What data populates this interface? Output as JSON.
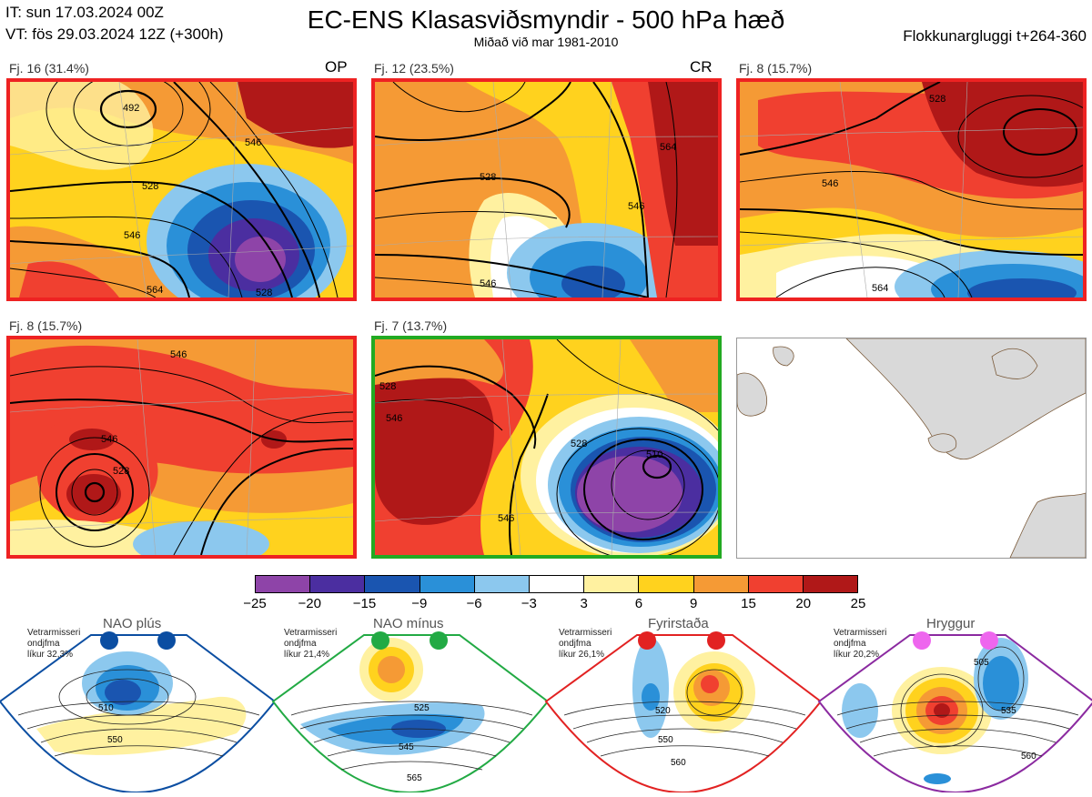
{
  "header": {
    "it_line": "IT: sun 17.03.2024 00Z",
    "vt_line": "VT: fös 29.03.2024 12Z  (+300h)",
    "title": "EC-ENS Klasasviðsmyndir - 500 hPa hæð",
    "subtitle": "Miðað við mar 1981-2010",
    "window": "Flokkunargluggi t+264-360"
  },
  "panels": [
    {
      "label": "Fj. 16 (31.4%)",
      "tag": "OP",
      "border": "#e22222",
      "contours": [
        "492",
        "528",
        "546",
        "564",
        "528",
        "546"
      ]
    },
    {
      "label": "Fj. 12 (23.5%)",
      "tag": "CR",
      "border": "#e22222",
      "contours": [
        "528",
        "546",
        "564",
        "546"
      ]
    },
    {
      "label": "Fj. 8 (15.7%)",
      "tag": "",
      "border": "#e22222",
      "contours": [
        "528",
        "546",
        "564"
      ]
    },
    {
      "label": "Fj. 8 (15.7%)",
      "tag": "",
      "border": "#e22222",
      "contours": [
        "546",
        "528",
        "546"
      ]
    },
    {
      "label": "Fj. 7 (13.7%)",
      "tag": "",
      "border": "#22aa22",
      "contours": [
        "528",
        "546",
        "510",
        "528",
        "546"
      ]
    }
  ],
  "colorbar": {
    "ticks": [
      "−25",
      "−20",
      "−15",
      "−9",
      "−6",
      "−3",
      "3",
      "6",
      "9",
      "15",
      "20",
      "25"
    ],
    "colors": [
      "#8e44a8",
      "#4b2ea0",
      "#1a55b0",
      "#2a90d8",
      "#8cc8ee",
      "#ffffff",
      "#fff1a0",
      "#ffd21e",
      "#f59a35",
      "#f04030",
      "#b01818"
    ]
  },
  "regimes": [
    {
      "name": "NAO plús",
      "desc1": "Vetrarmisseri",
      "desc2": "ondjfma",
      "desc3": "líkur 32,3%",
      "color": "#0b4ea2",
      "contours": [
        "510",
        "550"
      ]
    },
    {
      "name": "NAO mínus",
      "desc1": "Vetrarmisseri",
      "desc2": "ondjfma",
      "desc3": "líkur 21,4%",
      "color": "#22aa44",
      "contours": [
        "525",
        "545",
        "565"
      ]
    },
    {
      "name": "Fyrirstaða",
      "desc1": "Vetrarmisseri",
      "desc2": "ondjfma",
      "desc3": "líkur 26,1%",
      "color": "#e22222",
      "contours": [
        "520",
        "550",
        "560"
      ]
    },
    {
      "name": "Hryggur",
      "desc1": "Vetrarmisseri",
      "desc2": "ondjfma",
      "desc3": "líkur 20,2%",
      "color": "#8b2aa0",
      "dot": "#ee66ee",
      "contours": [
        "505",
        "535",
        "560"
      ]
    }
  ]
}
